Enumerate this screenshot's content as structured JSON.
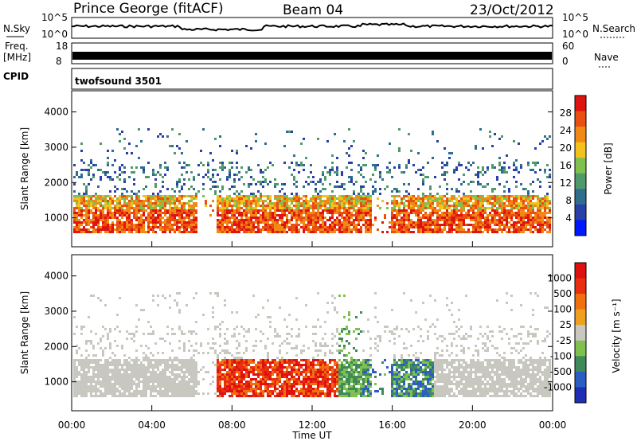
{
  "header": {
    "station": "Prince George (fitACF)",
    "beam": "Beam 04",
    "date": "23/Oct/2012"
  },
  "side_labels": {
    "nsky": "N.Sky",
    "nsearch": "N.Search",
    "freq_line1": "Freq.",
    "freq_line2": "[MHz]",
    "nave": "Nave",
    "cpid": "CPID"
  },
  "panel_ticks": {
    "nsky_top": "10^5",
    "nsky_bottom": "10^0",
    "nsearch_top": "10^5",
    "nsearch_bottom": "10^0",
    "freq_top": "18",
    "freq_bottom": "8",
    "nave_top": "60",
    "nave_bottom": "0"
  },
  "cpid_text": "twofsound 3501",
  "chart_data": [
    {
      "type": "heatmap",
      "panel": "power",
      "xlabel": "",
      "ylabel": "Slant Range [km]",
      "ylim": [
        180,
        4600
      ],
      "yticks": [
        "1000",
        "2000",
        "3000",
        "4000"
      ],
      "colorbar_label": "Power [dB]",
      "colorbar_ticks": [
        "28",
        "24",
        "20",
        "16",
        "12",
        "8",
        "4"
      ],
      "colors": [
        "#0018ff",
        "#2a3fa8",
        "#2f6e8c",
        "#4f9a6a",
        "#7fc04f",
        "#f2c21d",
        "#f08a14",
        "#ea4f12",
        "#e0140f"
      ]
    },
    {
      "type": "heatmap",
      "panel": "velocity",
      "xlabel": "Time UT",
      "ylabel": "Slant Range [km]",
      "ylim": [
        180,
        4600
      ],
      "yticks": [
        "1000",
        "2000",
        "3000",
        "4000"
      ],
      "xticks": [
        "00:00",
        "04:00",
        "08:00",
        "12:00",
        "16:00",
        "20:00",
        "00:00"
      ],
      "colorbar_label": "Velocity [m s⁻¹]",
      "colorbar_ticks": [
        "1000",
        "500",
        "100",
        "25",
        "-25",
        "-100",
        "-500",
        "-1000"
      ],
      "colors": [
        "#1f2fb4",
        "#2a5ec3",
        "#3f8a5a",
        "#7fc04f",
        "#c8c8c0",
        "#f0a020",
        "#f07010",
        "#e83010",
        "#e01010"
      ]
    }
  ]
}
